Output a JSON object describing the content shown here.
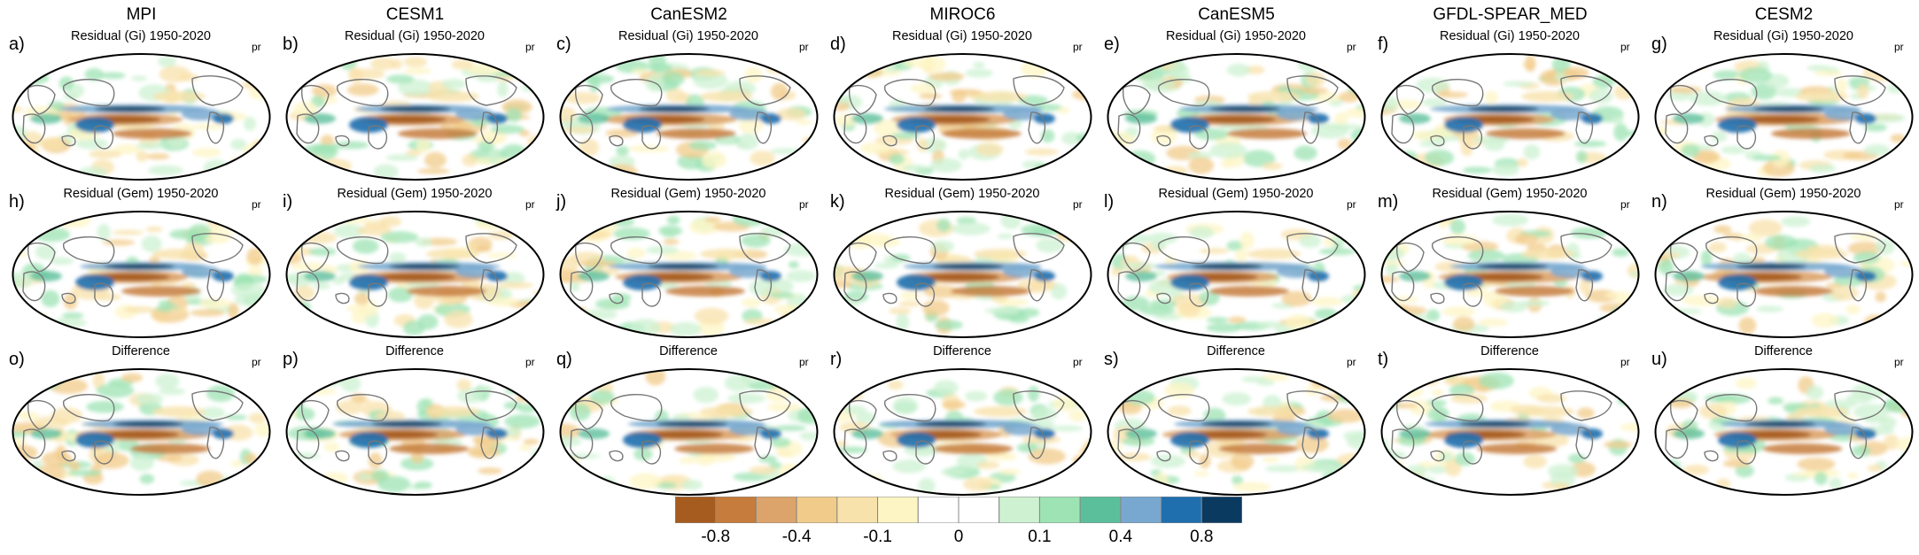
{
  "figure": {
    "models": [
      "MPI",
      "CESM1",
      "CanESM2",
      "MIROC6",
      "CanESM5",
      "GFDL-SPEAR_MED",
      "CESM2"
    ],
    "rows": [
      {
        "subtitle": "Residual (Gi) 1950-2020",
        "letters": [
          "a)",
          "b)",
          "c)",
          "d)",
          "e)",
          "f)",
          "g)"
        ]
      },
      {
        "subtitle": "Residual (Gem) 1950-2020",
        "letters": [
          "h)",
          "i)",
          "j)",
          "k)",
          "l)",
          "m)",
          "n)"
        ]
      },
      {
        "subtitle": "Difference",
        "letters": [
          "o)",
          "p)",
          "q)",
          "r)",
          "s)",
          "t)",
          "u)"
        ]
      }
    ],
    "variable": "pr"
  },
  "colorbar": {
    "colors": [
      "#a65b1f",
      "#c57c3c",
      "#dca36a",
      "#f1cb8a",
      "#f8e2ab",
      "#fdf5c4",
      "#ffffff",
      "#ffffff",
      "#cef1d2",
      "#9ee3b4",
      "#5cbf9c",
      "#78a8cf",
      "#1f6fae",
      "#0b3a60"
    ],
    "tick_labels": [
      "-0.8",
      "-0.4",
      "-0.1",
      "0",
      "0.1",
      "0.4",
      "0.8"
    ]
  }
}
